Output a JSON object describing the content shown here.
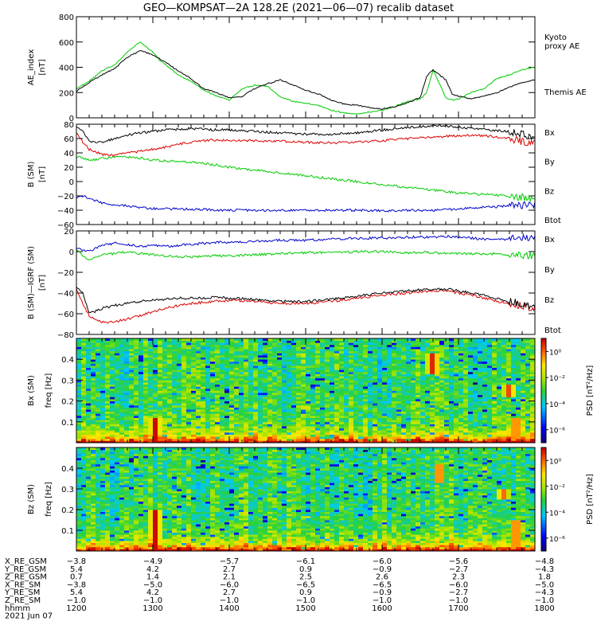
{
  "title": "GEO—KOMPSAT—2A 128.2E (2021—06—07) recalib dataset",
  "chart_data": [
    {
      "type": "line",
      "id": "ae",
      "ylabel": [
        "AE_index",
        "[nT]"
      ],
      "ylim": [
        0,
        800
      ],
      "yticks": [
        0,
        200,
        400,
        600,
        800
      ],
      "x": [
        1200,
        1210,
        1220,
        1230,
        1240,
        1250,
        1300,
        1305,
        1310,
        1320,
        1330,
        1340,
        1350,
        1400,
        1410,
        1420,
        1430,
        1440,
        1450,
        1500,
        1510,
        1520,
        1530,
        1540,
        1550,
        1600,
        1610,
        1620,
        1630,
        1635,
        1640,
        1650,
        1655,
        1700,
        1710,
        1720,
        1730,
        1740,
        1750,
        1800
      ],
      "series": [
        {
          "name": "Kyoto proxy AE",
          "label_lines": [
            "Kyoto",
            "proxy AE"
          ],
          "color": "#00cc00",
          "values": [
            230,
            290,
            370,
            420,
            520,
            600,
            520,
            460,
            420,
            340,
            290,
            220,
            170,
            140,
            230,
            260,
            250,
            170,
            130,
            115,
            100,
            60,
            40,
            30,
            45,
            60,
            90,
            130,
            150,
            200,
            380,
            160,
            140,
            150,
            200,
            230,
            310,
            340,
            380,
            400
          ]
        },
        {
          "name": "Themis AE",
          "label_lines": [
            "Themis AE"
          ],
          "color": "#000000",
          "values": [
            210,
            280,
            340,
            390,
            480,
            530,
            500,
            470,
            440,
            370,
            310,
            230,
            200,
            160,
            170,
            230,
            270,
            300,
            260,
            220,
            190,
            140,
            110,
            100,
            80,
            70,
            90,
            120,
            160,
            330,
            380,
            300,
            190,
            170,
            150,
            170,
            200,
            240,
            280,
            300
          ]
        }
      ]
    },
    {
      "type": "line",
      "id": "bsm",
      "ylabel": [
        "B (SM)",
        "[nT]"
      ],
      "ylim": [
        -60,
        80
      ],
      "yticks": [
        -60,
        -40,
        -20,
        0,
        20,
        40,
        60,
        80
      ],
      "x": [
        1200,
        1205,
        1210,
        1220,
        1230,
        1240,
        1250,
        1300,
        1310,
        1320,
        1330,
        1340,
        1350,
        1400,
        1420,
        1440,
        1500,
        1520,
        1540,
        1600,
        1620,
        1640,
        1650,
        1700,
        1710,
        1720,
        1730,
        1740,
        1750,
        1760,
        1770,
        1780,
        1800
      ],
      "series": [
        {
          "name": "Bx",
          "color": "#0000cc",
          "values": [
            -22,
            -20,
            -24,
            -30,
            -32,
            -34,
            -36,
            -38,
            -38,
            -38,
            -39,
            -39,
            -40,
            -40,
            -40,
            -40,
            -40,
            -40,
            -40,
            -41,
            -40,
            -40,
            -39,
            -38,
            -37,
            -36,
            -35,
            -34,
            -33,
            -32,
            -31,
            -30,
            -29
          ]
        },
        {
          "name": "By",
          "color": "#00cc00",
          "values": [
            35,
            33,
            30,
            32,
            35,
            34,
            33,
            30,
            29,
            28,
            27,
            25,
            23,
            20,
            16,
            12,
            8,
            4,
            0,
            -4,
            -8,
            -12,
            -14,
            -16,
            -17,
            -18,
            -19,
            -20,
            -22,
            -24,
            -26,
            -28,
            -30
          ]
        },
        {
          "name": "Bz",
          "color": "#dd0000",
          "values": [
            70,
            55,
            45,
            38,
            36,
            40,
            42,
            45,
            48,
            52,
            55,
            57,
            58,
            58,
            57,
            56,
            55,
            54,
            55,
            57,
            60,
            62,
            63,
            64,
            65,
            64,
            62,
            60,
            56,
            52,
            50,
            48,
            48
          ]
        },
        {
          "name": "Btot",
          "color": "#000000",
          "values": [
            78,
            70,
            56,
            55,
            60,
            65,
            68,
            70,
            72,
            73,
            74,
            73,
            72,
            72,
            70,
            68,
            66,
            66,
            68,
            72,
            75,
            78,
            78,
            76,
            74,
            73,
            71,
            70,
            66,
            62,
            60,
            60,
            62
          ]
        }
      ]
    },
    {
      "type": "line",
      "id": "bigrf",
      "ylabel": [
        "B (SM)—IGRF (SM)",
        "[nT]"
      ],
      "ylim": [
        -80,
        20
      ],
      "yticks": [
        -80,
        -60,
        -40,
        -20,
        0,
        20
      ],
      "x": [
        1200,
        1205,
        1210,
        1220,
        1230,
        1240,
        1250,
        1300,
        1310,
        1320,
        1330,
        1340,
        1350,
        1400,
        1420,
        1440,
        1500,
        1520,
        1540,
        1600,
        1620,
        1640,
        1650,
        1700,
        1710,
        1720,
        1730,
        1740,
        1750,
        1760,
        1770,
        1780,
        1800
      ],
      "series": [
        {
          "name": "Bx",
          "color": "#0000cc",
          "values": [
            4,
            2,
            0,
            6,
            8,
            7,
            5,
            6,
            5,
            6,
            7,
            8,
            9,
            9,
            10,
            11,
            11,
            12,
            13,
            13,
            14,
            14,
            15,
            14,
            13,
            12,
            12,
            12,
            13,
            13,
            14,
            14,
            15
          ]
        },
        {
          "name": "By",
          "color": "#00cc00",
          "values": [
            3,
            -5,
            -8,
            -3,
            -2,
            0,
            -2,
            -3,
            -4,
            -5,
            -5,
            -5,
            -4,
            -4,
            -3,
            -2,
            -1,
            -1,
            0,
            0,
            -1,
            -1,
            -2,
            -2,
            -2,
            -2,
            -2,
            -3,
            -3,
            -4,
            -5,
            -6,
            -6
          ]
        },
        {
          "name": "Bz",
          "color": "#dd0000",
          "values": [
            -35,
            -50,
            -62,
            -68,
            -68,
            -65,
            -62,
            -58,
            -55,
            -52,
            -50,
            -49,
            -48,
            -47,
            -48,
            -50,
            -50,
            -48,
            -45,
            -42,
            -40,
            -38,
            -38,
            -40,
            -42,
            -45,
            -48,
            -50,
            -52,
            -56,
            -58,
            -60,
            -55
          ]
        },
        {
          "name": "Btot",
          "color": "#000000",
          "values": [
            -33,
            -40,
            -60,
            -55,
            -52,
            -50,
            -48,
            -47,
            -46,
            -45,
            -45,
            -45,
            -44,
            -45,
            -46,
            -48,
            -48,
            -46,
            -43,
            -40,
            -38,
            -36,
            -36,
            -38,
            -40,
            -42,
            -45,
            -48,
            -50,
            -54,
            -56,
            -58,
            -52
          ]
        }
      ]
    },
    {
      "type": "heatmap",
      "id": "spec_bx",
      "ylabel": [
        "Bx (SM)",
        "freq [Hz]"
      ],
      "ylim": [
        0,
        0.5
      ],
      "yticks": [
        0.1,
        0.2,
        0.3,
        0.4
      ],
      "colorbar": {
        "label": "PSD [nT²/Hz]",
        "ticks": [
          "10⁰",
          "10⁻²",
          "10⁻⁴",
          "10⁻⁶"
        ],
        "exponents": [
          0,
          -2,
          -4,
          -6
        ],
        "range": [
          -7,
          1
        ]
      },
      "time_columns": 96,
      "freq_rows": 50,
      "features": [
        {
          "t": 1302,
          "f_low": 0.0,
          "f_high": 0.12,
          "level": 1.0
        },
        {
          "t": 1640,
          "f_low": 0.33,
          "f_high": 0.43,
          "level": 1.0
        },
        {
          "t": 1740,
          "f_low": 0.22,
          "f_high": 0.28,
          "level": 0.9
        },
        {
          "t": 1745,
          "f_low": 0.0,
          "f_high": 0.12,
          "level": 0.9
        },
        {
          "t": 1500,
          "f_low": 0.16,
          "f_high": 0.175,
          "level": 0.4
        }
      ]
    },
    {
      "type": "heatmap",
      "id": "spec_bz",
      "ylabel": [
        "Bz (SM)",
        "freq [Hz]"
      ],
      "ylim": [
        0,
        0.5
      ],
      "yticks": [
        0.1,
        0.2,
        0.3,
        0.4
      ],
      "colorbar": {
        "label": "PSD [nT²/Hz]",
        "ticks": [
          "10⁰",
          "10⁻²",
          "10⁻⁴",
          "10⁻⁶"
        ],
        "exponents": [
          0,
          -2,
          -4,
          -6
        ],
        "range": [
          -7,
          1
        ]
      },
      "time_columns": 96,
      "freq_rows": 50,
      "features": [
        {
          "t": 1302,
          "f_low": 0.0,
          "f_high": 0.2,
          "level": 1.0
        },
        {
          "t": 1645,
          "f_low": 0.33,
          "f_high": 0.42,
          "level": 0.9
        },
        {
          "t": 1735,
          "f_low": 0.25,
          "f_high": 0.3,
          "level": 0.8
        },
        {
          "t": 1745,
          "f_low": 0.0,
          "f_high": 0.15,
          "level": 0.9
        },
        {
          "t": 1500,
          "f_low": 0.16,
          "f_high": 0.17,
          "level": 0.4
        }
      ]
    }
  ],
  "ephemeris": {
    "rows": [
      {
        "label": "X_RE_GSM",
        "values": [
          "−3.8",
          "−4.9",
          "−5.7",
          "−6.1",
          "−6.0",
          "−5.6",
          "−4.8"
        ]
      },
      {
        "label": "Y_RE_GSM",
        "values": [
          "5.4",
          "4.2",
          "2.7",
          "0.9",
          "−0.9",
          "−2.7",
          "−4.3"
        ]
      },
      {
        "label": "Z_RE_GSM",
        "values": [
          "0.7",
          "1.4",
          "2.1",
          "2.5",
          "2.6",
          "2.3",
          "1.8"
        ]
      },
      {
        "label": "X_RE_SM",
        "values": [
          "−3.8",
          "−5.0",
          "−6.0",
          "−6.5",
          "−6.5",
          "−6.0",
          "−5.0"
        ]
      },
      {
        "label": "Y_RE_SM",
        "values": [
          "5.4",
          "4.2",
          "2.7",
          "0.9",
          "−0.9",
          "−2.7",
          "−4.3"
        ]
      },
      {
        "label": "Z_RE_SM",
        "values": [
          "−1.0",
          "−1.0",
          "−1.0",
          "−1.0",
          "−1.0",
          "−1.0",
          "−1.0"
        ]
      },
      {
        "label": "hhmm",
        "values": [
          "1200",
          "1300",
          "1400",
          "1500",
          "1600",
          "1700",
          "1800"
        ]
      }
    ],
    "date": "2021 Jun 07"
  }
}
